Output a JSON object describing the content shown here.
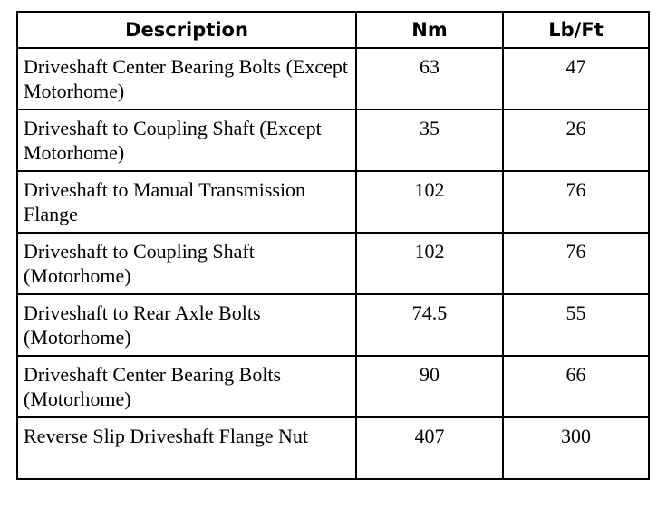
{
  "table": {
    "headers": [
      "Description",
      "Nm",
      "Lb/Ft"
    ],
    "rows": [
      {
        "description": "Driveshaft Center Bearing Bolts (Except Motorhome)",
        "nm": "63",
        "lbft": "47"
      },
      {
        "description": "Driveshaft to Coupling Shaft (Except Motorhome)",
        "nm": "35",
        "lbft": "26"
      },
      {
        "description": "Driveshaft to Manual Transmission Flange",
        "nm": "102",
        "lbft": "76"
      },
      {
        "description": "Driveshaft to Coupling Shaft (Motorhome)",
        "nm": "102",
        "lbft": "76"
      },
      {
        "description": "Driveshaft to Rear Axle Bolts (Motorhome)",
        "nm": "74.5",
        "lbft": "55"
      },
      {
        "description": "Driveshaft Center Bearing Bolts (Motorhome)",
        "nm": "90",
        "lbft": "66"
      },
      {
        "description": "Reverse Slip Driveshaft Flange Nut",
        "nm": "407",
        "lbft": "300"
      }
    ]
  }
}
